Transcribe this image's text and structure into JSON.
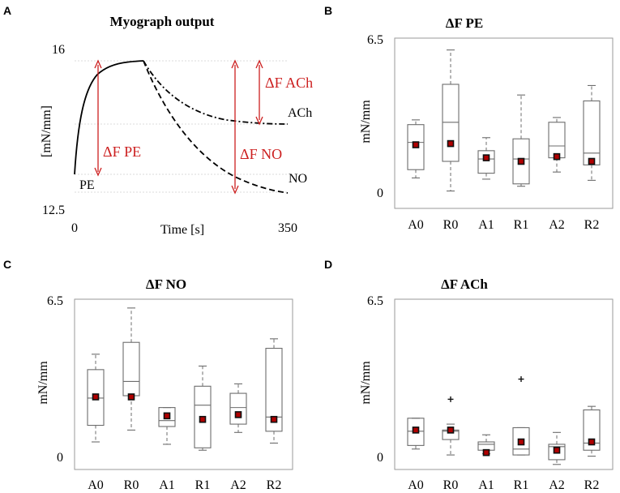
{
  "chart_data": [
    {
      "id": "A",
      "letter": "A",
      "type": "line",
      "title": "Myograph output",
      "xlabel": "Time [s]",
      "ylabel": "[mN/mm]",
      "xlim": [
        0,
        350
      ],
      "ylim": [
        12.5,
        16
      ],
      "x_tick_labels": [
        "0",
        "350"
      ],
      "y_tick_labels": [
        "12.5",
        "16"
      ],
      "peak": {
        "t": 115,
        "f": 15.5
      },
      "baseline": {
        "t": 0,
        "f": 13.05
      },
      "series": [
        {
          "name": "PE",
          "style": "solid",
          "plateau": 15.5
        },
        {
          "name": "ACh",
          "style": "dashdot",
          "plateau": 14.45
        },
        {
          "name": "NO",
          "style": "dashed",
          "plateau": 12.85
        }
      ],
      "annotations": [
        "ΔF PE",
        "ΔF NO",
        "ΔF ACh"
      ],
      "labels": [
        "PE",
        "ACh",
        "NO"
      ]
    },
    {
      "id": "B",
      "letter": "B",
      "type": "box",
      "title": "ΔF PE",
      "ylabel": "mN/mm",
      "ylim": [
        0,
        6.5
      ],
      "y_tick_labels": [
        "0",
        "6.5"
      ],
      "categories": [
        "A0",
        "R0",
        "A1",
        "R1",
        "A2",
        "R2"
      ],
      "boxes": [
        {
          "whislo": 0.6,
          "q1": 0.95,
          "med": 2.1,
          "q3": 2.85,
          "whishi": 3.05,
          "mean": 2.0,
          "fliers": []
        },
        {
          "whislo": 0.05,
          "q1": 1.3,
          "med": 2.95,
          "q3": 4.55,
          "whishi": 6.0,
          "mean": 2.05,
          "fliers": []
        },
        {
          "whislo": 0.55,
          "q1": 0.8,
          "med": 1.4,
          "q3": 1.75,
          "whishi": 2.3,
          "mean": 1.45,
          "fliers": []
        },
        {
          "whislo": 0.25,
          "q1": 0.35,
          "med": 1.4,
          "q3": 2.25,
          "whishi": 4.1,
          "mean": 1.3,
          "fliers": []
        },
        {
          "whislo": 0.85,
          "q1": 1.45,
          "med": 1.95,
          "q3": 2.95,
          "whishi": 3.15,
          "mean": 1.5,
          "fliers": []
        },
        {
          "whislo": 0.5,
          "q1": 1.15,
          "med": 1.65,
          "q3": 3.85,
          "whishi": 4.5,
          "mean": 1.3,
          "fliers": []
        }
      ]
    },
    {
      "id": "C",
      "letter": "C",
      "type": "box",
      "title": "ΔF NO",
      "ylabel": "mN/mm",
      "ylim": [
        0,
        6.5
      ],
      "y_tick_labels": [
        "0",
        "6.5"
      ],
      "categories": [
        "A0",
        "R0",
        "A1",
        "R1",
        "A2",
        "R2"
      ],
      "boxes": [
        {
          "whislo": 0.65,
          "q1": 1.35,
          "med": 2.5,
          "q3": 3.7,
          "whishi": 4.35,
          "mean": 2.55,
          "fliers": []
        },
        {
          "whislo": 1.15,
          "q1": 2.6,
          "med": 3.2,
          "q3": 4.85,
          "whishi": 6.3,
          "mean": 2.55,
          "fliers": []
        },
        {
          "whislo": 0.55,
          "q1": 1.3,
          "med": 1.55,
          "q3": 2.1,
          "whishi": 2.1,
          "mean": 1.75,
          "fliers": []
        },
        {
          "whislo": 0.3,
          "q1": 0.4,
          "med": 2.2,
          "q3": 3.0,
          "whishi": 3.85,
          "mean": 1.6,
          "fliers": []
        },
        {
          "whislo": 1.05,
          "q1": 1.4,
          "med": 2.1,
          "q3": 2.7,
          "whishi": 3.1,
          "mean": 1.8,
          "fliers": []
        },
        {
          "whislo": 0.6,
          "q1": 1.1,
          "med": 1.7,
          "q3": 4.6,
          "whishi": 5.0,
          "mean": 1.6,
          "fliers": []
        }
      ]
    },
    {
      "id": "D",
      "letter": "D",
      "type": "box",
      "title": "ΔF ACh",
      "ylabel": "mN/mm",
      "ylim": [
        0,
        6.5
      ],
      "y_tick_labels": [
        "0",
        "6.5"
      ],
      "categories": [
        "A0",
        "R0",
        "A1",
        "R1",
        "A2",
        "R2"
      ],
      "boxes": [
        {
          "whislo": 0.35,
          "q1": 0.5,
          "med": 1.1,
          "q3": 1.65,
          "whishi": 1.65,
          "mean": 1.15,
          "fliers": []
        },
        {
          "whislo": 0.1,
          "q1": 0.75,
          "med": 1.1,
          "q3": 1.15,
          "whishi": 1.4,
          "mean": 1.15,
          "fliers": [
            2.45
          ]
        },
        {
          "whislo": 0.15,
          "q1": 0.3,
          "med": 0.55,
          "q3": 0.65,
          "whishi": 0.95,
          "mean": 0.2,
          "fliers": []
        },
        {
          "whislo": 0.1,
          "q1": 0.1,
          "med": 0.35,
          "q3": 1.25,
          "whishi": 1.25,
          "mean": 0.65,
          "fliers": [
            3.3
          ]
        },
        {
          "whislo": -0.3,
          "q1": -0.1,
          "med": 0.45,
          "q3": 0.55,
          "whishi": 1.05,
          "mean": 0.3,
          "fliers": []
        },
        {
          "whislo": 0.05,
          "q1": 0.3,
          "med": 0.6,
          "q3": 2.0,
          "whishi": 2.15,
          "mean": 0.65,
          "fliers": []
        }
      ]
    }
  ]
}
